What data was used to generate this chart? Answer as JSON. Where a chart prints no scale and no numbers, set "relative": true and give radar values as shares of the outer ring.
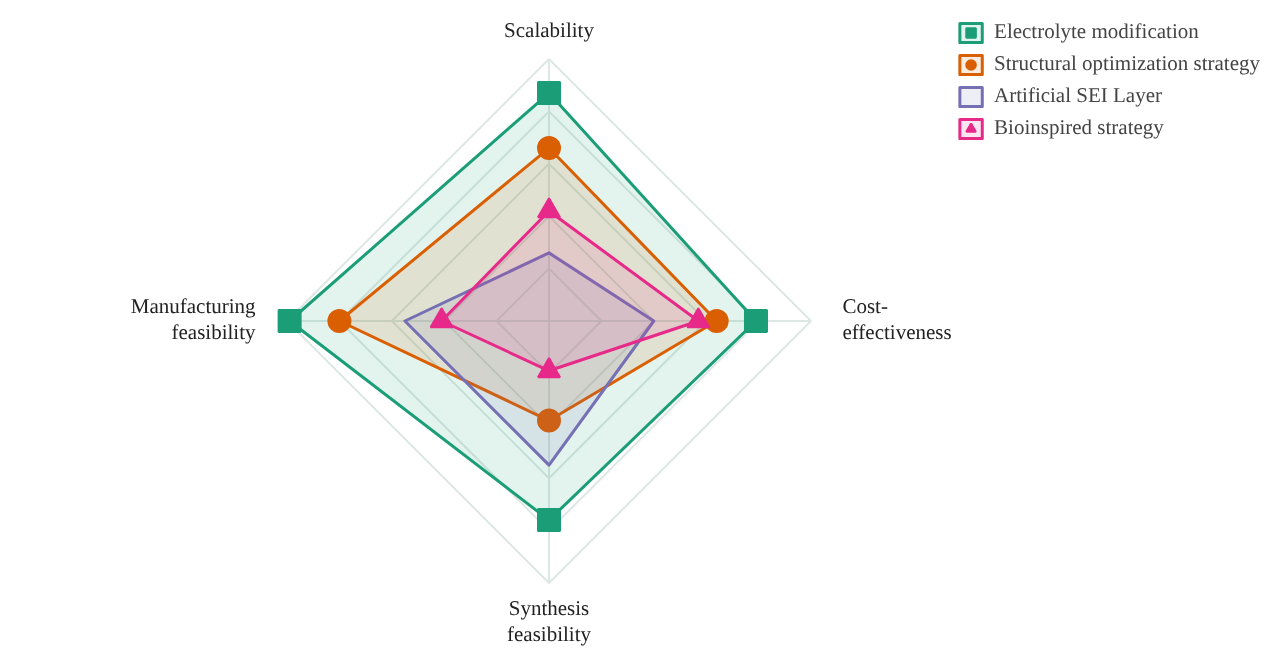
{
  "chart_data": {
    "type": "radar",
    "relative": true,
    "grid": true,
    "legend": "top right",
    "categories": [
      "Scalability",
      "Cost-\neffectiveness",
      "Synthesis\nfeasibility",
      "Manufacturing\nfeasibility"
    ],
    "series": [
      {
        "name": "Electrolyte modification",
        "color": "#1b9e77",
        "marker": "square",
        "values": [
          0.87,
          0.79,
          0.76,
          0.99
        ]
      },
      {
        "name": "Structural optimization strategy",
        "color": "#d95f02",
        "marker": "circle",
        "values": [
          0.66,
          0.64,
          0.38,
          0.8
        ]
      },
      {
        "name": "Artificial SEI Layer",
        "color": "#7570b3",
        "marker": "pentagon",
        "values": [
          0.26,
          0.4,
          0.55,
          0.55
        ]
      },
      {
        "name": "Bioinspired strategy",
        "color": "#e7298a",
        "marker": "triangle",
        "values": [
          0.42,
          0.57,
          0.19,
          0.41
        ]
      }
    ]
  }
}
